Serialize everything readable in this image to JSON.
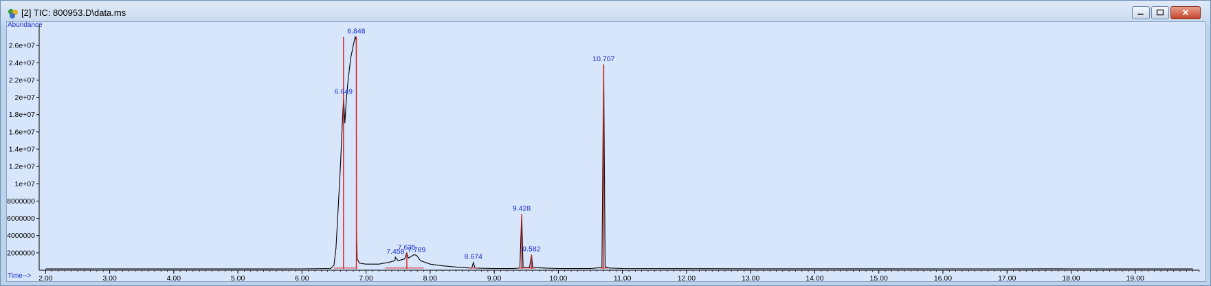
{
  "window": {
    "title": "[2] TIC: 800953.D\\data.ms",
    "buttons": [
      "minimize-icon",
      "restore-icon",
      "close-icon"
    ]
  },
  "colors": {
    "plot_bg": "#d7e6fb",
    "trace": "#000000",
    "integration": "#e0201c",
    "labels": "#1f2fd0"
  },
  "chart_data": {
    "type": "line",
    "title": "TIC: 800953.D\\data.ms",
    "ylabel": "Abundance",
    "xlabel": "Time-->",
    "xlim": [
      1.9,
      20.0
    ],
    "ylim": [
      0,
      28000000.0
    ],
    "x_ticks": [
      "2.00",
      "3.00",
      "4.00",
      "5.00",
      "6.00",
      "7.00",
      "8.00",
      "9.00",
      "10.00",
      "11.00",
      "12.00",
      "13.00",
      "14.00",
      "15.00",
      "16.00",
      "17.00",
      "18.00",
      "19.00"
    ],
    "y_ticks": [
      "2000000",
      "4000000",
      "6000000",
      "8000000",
      "1e+07",
      "1.2e+07",
      "1.4e+07",
      "1.6e+07",
      "1.8e+07",
      "2e+07",
      "2.2e+07",
      "2.4e+07",
      "2.6e+07"
    ],
    "series": [
      {
        "name": "TIC",
        "points": [
          [
            2.0,
            150000
          ],
          [
            2.8,
            160000
          ],
          [
            3.2,
            150000
          ],
          [
            4.0,
            150000
          ],
          [
            5.0,
            155000
          ],
          [
            6.0,
            160000
          ],
          [
            6.45,
            200000
          ],
          [
            6.5,
            600000
          ],
          [
            6.53,
            2500000
          ],
          [
            6.56,
            6500000
          ],
          [
            6.6,
            12000000
          ],
          [
            6.63,
            17000000
          ],
          [
            6.649,
            20000000
          ],
          [
            6.67,
            17000000
          ],
          [
            6.69,
            19500000
          ],
          [
            6.72,
            22000000
          ],
          [
            6.76,
            24500000
          ],
          [
            6.8,
            26000000
          ],
          [
            6.83,
            27000000
          ],
          [
            6.848,
            26600000
          ],
          [
            6.85,
            5000000
          ],
          [
            6.86,
            1300000
          ],
          [
            6.9,
            800000
          ],
          [
            7.0,
            700000
          ],
          [
            7.2,
            700000
          ],
          [
            7.35,
            900000
          ],
          [
            7.45,
            1100000
          ],
          [
            7.458,
            1500000
          ],
          [
            7.5,
            1100000
          ],
          [
            7.6,
            1300000
          ],
          [
            7.635,
            2000000
          ],
          [
            7.66,
            1400000
          ],
          [
            7.75,
            1800000
          ],
          [
            7.789,
            1700000
          ],
          [
            7.85,
            1100000
          ],
          [
            8.0,
            700000
          ],
          [
            8.2,
            500000
          ],
          [
            8.5,
            300000
          ],
          [
            8.65,
            250000
          ],
          [
            8.674,
            900000
          ],
          [
            8.7,
            250000
          ],
          [
            9.0,
            200000
          ],
          [
            9.3,
            200000
          ],
          [
            9.4,
            250000
          ],
          [
            9.428,
            6500000
          ],
          [
            9.45,
            300000
          ],
          [
            9.55,
            300000
          ],
          [
            9.582,
            1800000
          ],
          [
            9.6,
            300000
          ],
          [
            9.8,
            250000
          ],
          [
            10.0,
            200000
          ],
          [
            10.5,
            200000
          ],
          [
            10.68,
            300000
          ],
          [
            10.707,
            23800000
          ],
          [
            10.73,
            400000
          ],
          [
            10.8,
            250000
          ],
          [
            11.0,
            200000
          ],
          [
            12.0,
            180000
          ],
          [
            13.0,
            170000
          ],
          [
            14.0,
            165000
          ],
          [
            15.0,
            165000
          ],
          [
            16.0,
            160000
          ],
          [
            17.0,
            160000
          ],
          [
            17.8,
            170000
          ],
          [
            18.0,
            160000
          ],
          [
            19.0,
            155000
          ],
          [
            19.9,
            150000
          ]
        ]
      }
    ],
    "peaks": [
      {
        "label": "6.649",
        "rt": 6.649,
        "abundance": 20000000
      },
      {
        "label": "6.848",
        "rt": 6.848,
        "abundance": 27000000
      },
      {
        "label": "7.458",
        "rt": 7.458,
        "abundance": 1500000
      },
      {
        "label": "7.635",
        "rt": 7.635,
        "abundance": 2000000
      },
      {
        "label": "7.789",
        "rt": 7.789,
        "abundance": 1700000
      },
      {
        "label": "8.674",
        "rt": 8.674,
        "abundance": 900000
      },
      {
        "label": "9.428",
        "rt": 9.428,
        "abundance": 6500000
      },
      {
        "label": "9.582",
        "rt": 9.582,
        "abundance": 1800000
      },
      {
        "label": "10.707",
        "rt": 10.707,
        "abundance": 23800000
      }
    ],
    "integration_marks": [
      {
        "rt": 6.648,
        "abundance": 27000000
      },
      {
        "rt": 6.849,
        "abundance": 27000000
      },
      {
        "rt": 7.636,
        "abundance": 2000000
      },
      {
        "rt": 9.429,
        "abundance": 6500000
      },
      {
        "rt": 9.583,
        "abundance": 1800000
      },
      {
        "rt": 10.708,
        "abundance": 23800000
      }
    ],
    "grid": false,
    "legend": "none"
  }
}
